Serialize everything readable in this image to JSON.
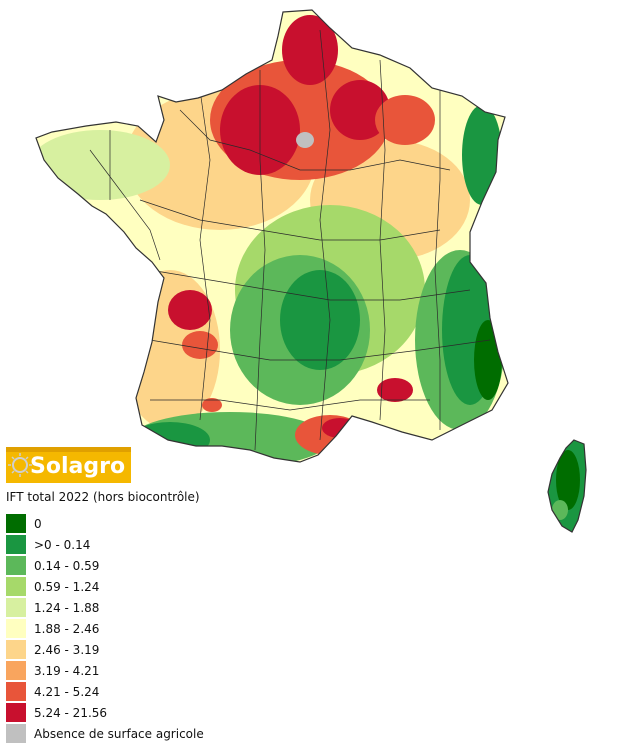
{
  "logo": {
    "text": "Solagro"
  },
  "legend": {
    "title": "IFT total 2022 (hors biocontrôle)",
    "items": [
      {
        "label": "0",
        "color": "#006d00"
      },
      {
        "label": ">0 - 0.14",
        "color": "#1a9641"
      },
      {
        "label": "0.14 - 0.59",
        "color": "#5cb85a"
      },
      {
        "label": "0.59 - 1.24",
        "color": "#a6d96a"
      },
      {
        "label": "1.24 - 1.88",
        "color": "#d7f0a0"
      },
      {
        "label": "1.88 - 2.46",
        "color": "#ffffc0"
      },
      {
        "label": "2.46 - 3.19",
        "color": "#fdd58a"
      },
      {
        "label": "3.19 - 4.21",
        "color": "#f9a55e"
      },
      {
        "label": "4.21 - 5.24",
        "color": "#e8553a"
      },
      {
        "label": "5.24 - 21.56",
        "color": "#c8102e"
      },
      {
        "label": "Absence de surface agricole",
        "color": "#c0c0c0"
      }
    ]
  }
}
